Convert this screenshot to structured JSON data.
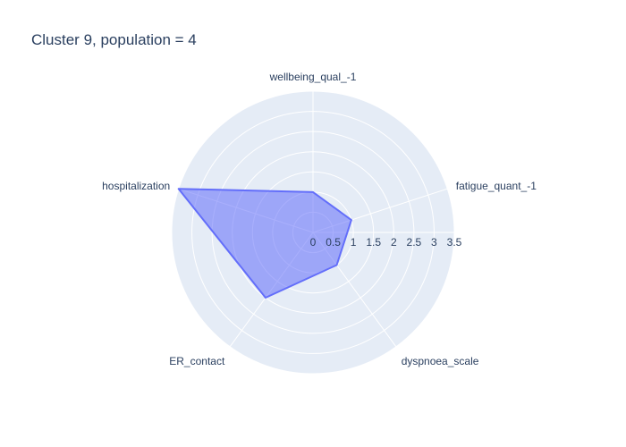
{
  "chart_data": {
    "type": "radar",
    "title": "Cluster 9, population = 4",
    "categories": [
      "wellbeing_qual_-1",
      "fatigue_quant_-1",
      "dyspnoea_scale",
      "ER_contact",
      "hospitalization"
    ],
    "values": [
      1.0,
      1.0,
      1.0,
      2.0,
      3.5
    ],
    "radial_range": [
      0,
      3.5
    ],
    "radial_ticks": [
      "0",
      "0.5",
      "1",
      "1.5",
      "2",
      "2.5",
      "3",
      "3.5"
    ],
    "grid": true,
    "colors": {
      "polar_bg": "#e5ecf6",
      "grid": "#ffffff",
      "fill": "rgba(99,110,250,0.55)",
      "line": "#636efa",
      "text": "#2a3f5f"
    }
  }
}
